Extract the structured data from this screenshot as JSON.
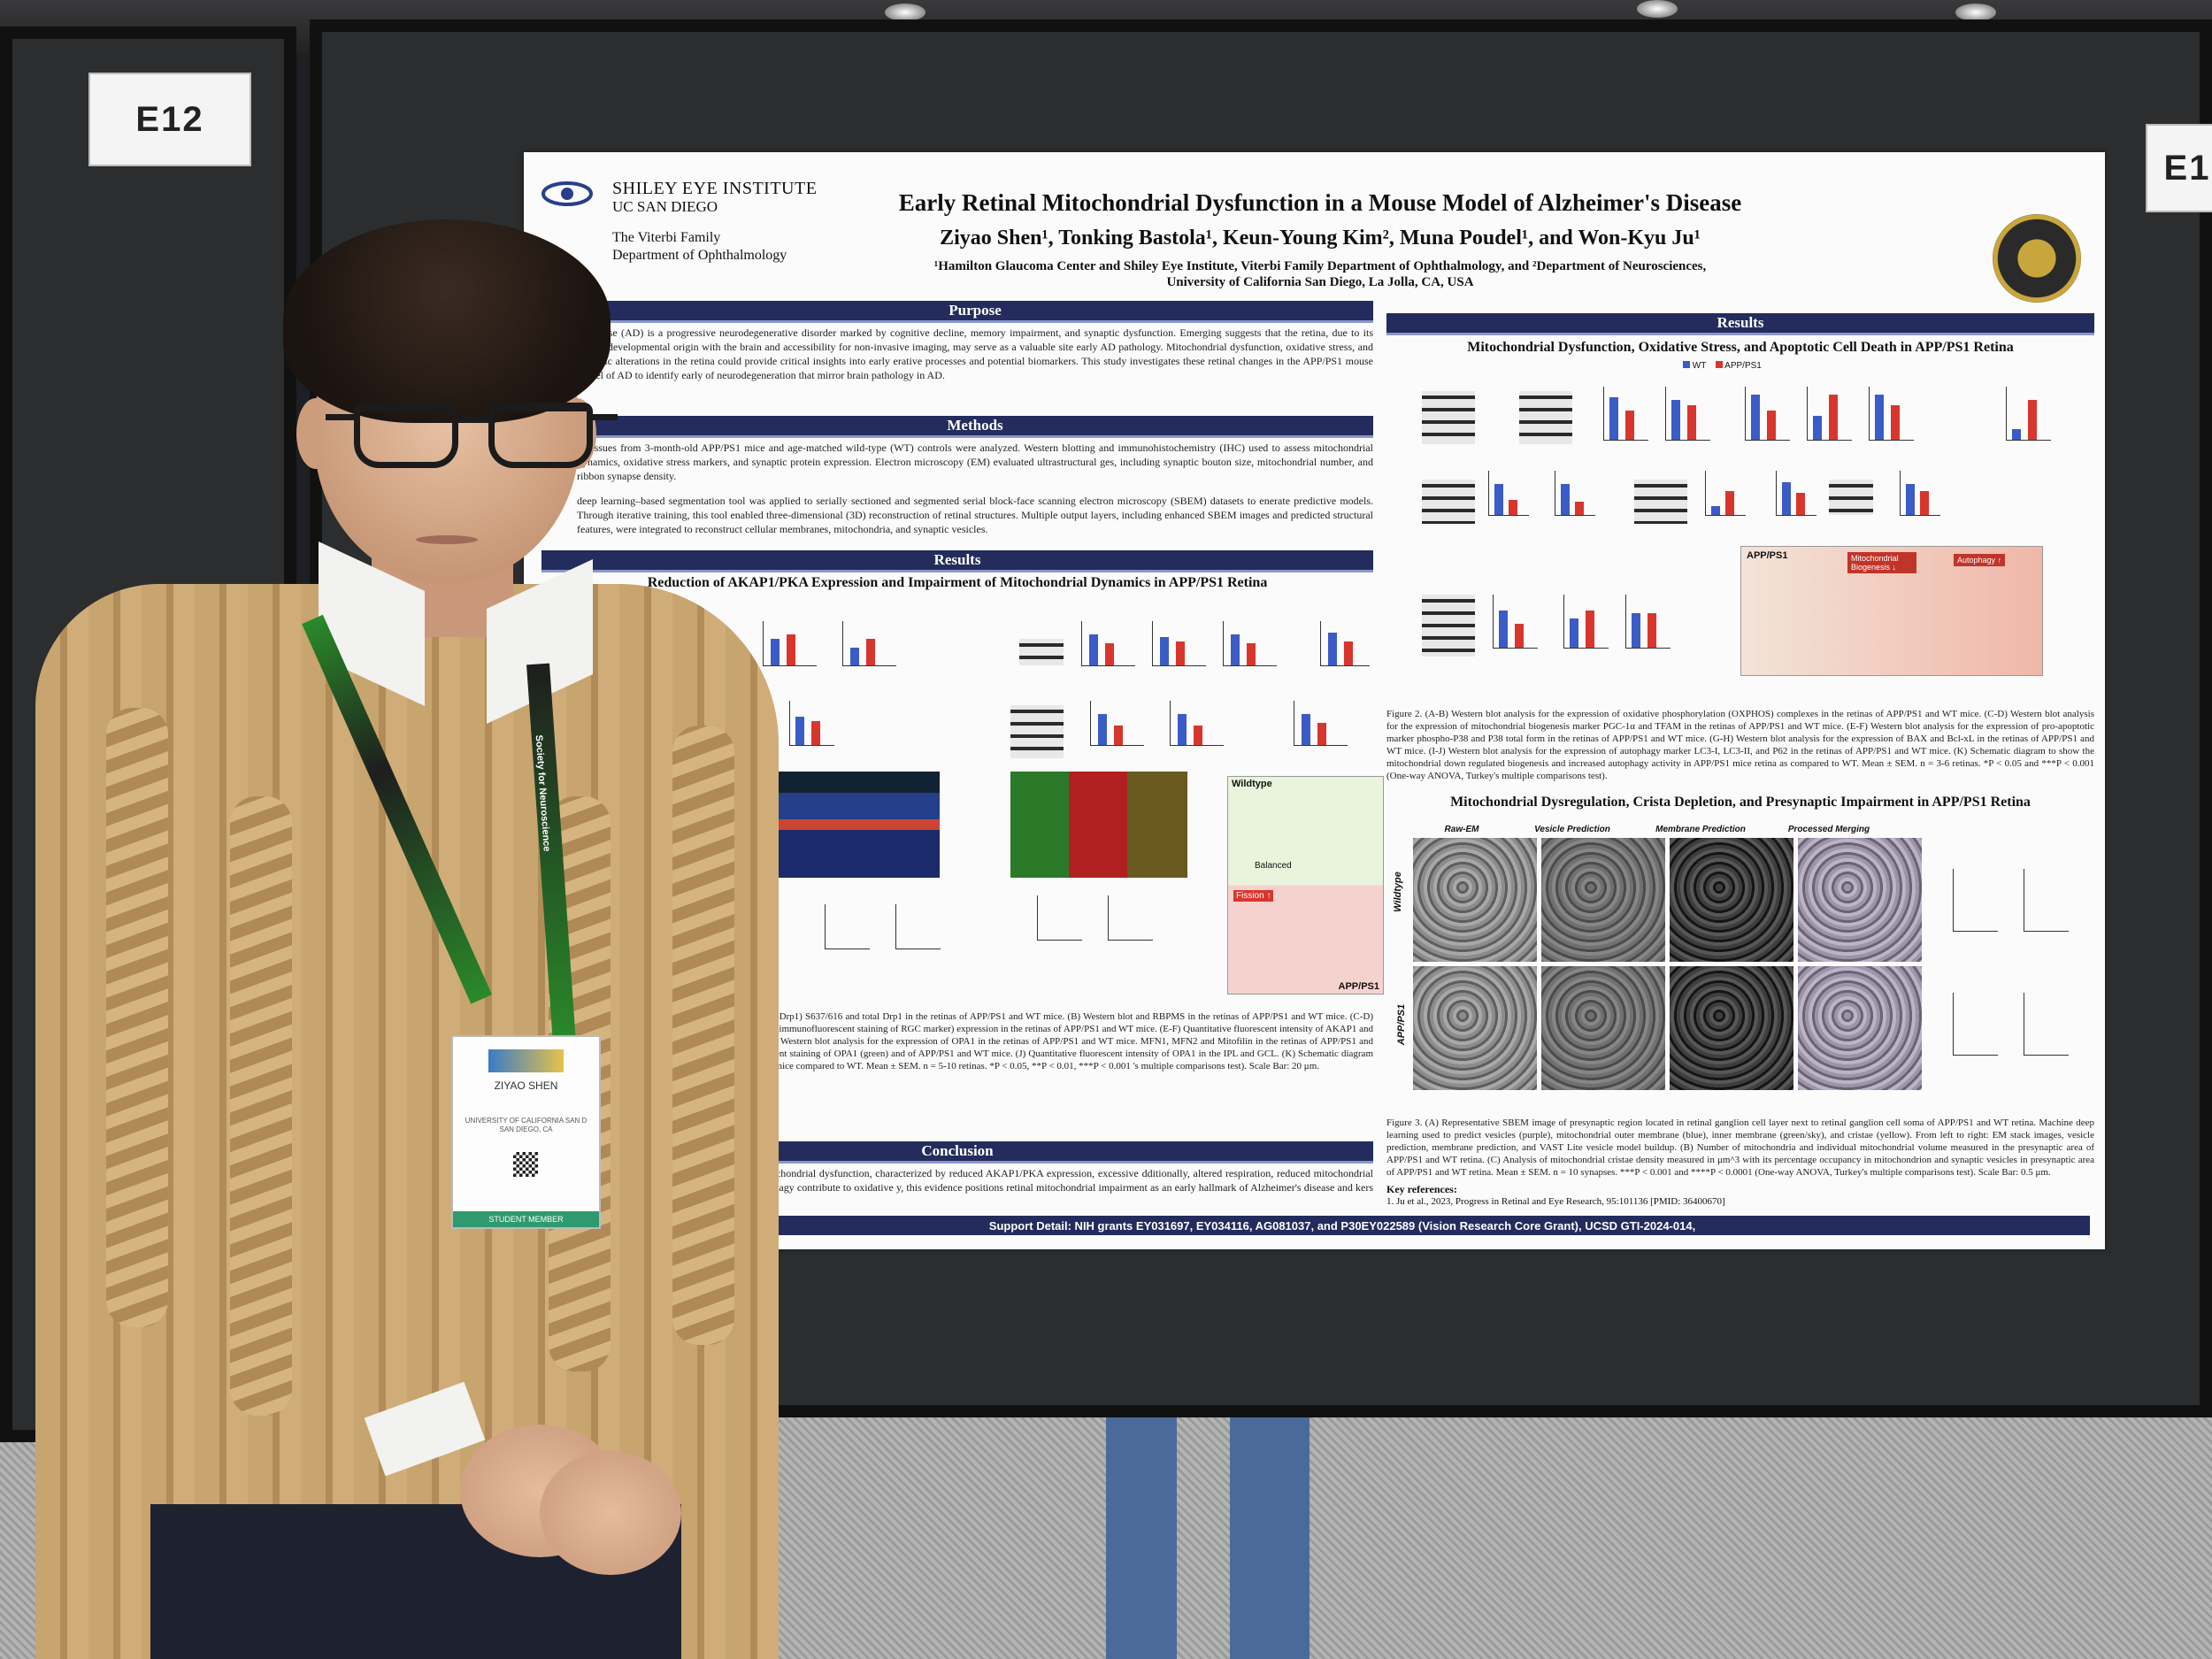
{
  "scene": {
    "board_labels": [
      "E12",
      "E1"
    ]
  },
  "poster": {
    "institute": "SHILEY EYE INSTITUTE",
    "institute_sub": "UC SAN DIEGO",
    "dept_line1": "The Viterbi Family",
    "dept_line2": "Department of Ophthalmology",
    "title": "Early Retinal Mitochondrial Dysfunction in a Mouse Model of Alzheimer's Disease",
    "authors": "Ziyao Shen¹, Tonking Bastola¹, Keun-Young Kim², Muna Poudel¹, and Won-Kyu Ju¹",
    "affiliation1": "¹Hamilton Glaucoma Center and Shiley Eye Institute, Viterbi Family Department of Ophthalmology, and ²Department of Neurosciences,",
    "affiliation2": "University of California San Diego, La Jolla, CA, USA",
    "sections": {
      "purpose": "Purpose",
      "methods": "Methods",
      "results_left": "Results",
      "results_right": "Results",
      "conclusion": "Conclusion"
    },
    "purpose_text": "'s disease (AD) is a progressive neurodegenerative disorder marked by cognitive decline, memory impairment, and synaptic dysfunction. Emerging suggests that the retina, due to its shared developmental origin with the brain and accessibility for non-invasive imaging, may serve as a valuable site early AD pathology. Mitochondrial dysfunction, oxidative stress, and synaptic alterations in the retina could provide critical insights into early erative processes and potential biomarkers. This study investigates these retinal changes in the APP/PS1 mouse model of AD to identify early of neurodegeneration that mirror brain pathology in AD.",
    "methods_text1": "al tissues from 3-month-old APP/PS1 mice and age-matched wild-type (WT) controls were analyzed. Western blotting and immunohistochemistry (IHC) used to assess mitochondrial dynamics, oxidative stress markers, and synaptic protein expression. Electron microscopy (EM) evaluated ultrastructural ges, including synaptic bouton size, mitochondrial number, and ribbon synapse density.",
    "methods_text2": "deep learning–based segmentation tool was applied to serially sectioned and segmented serial block-face scanning electron microscopy (SBEM) datasets to enerate predictive models. Through iterative training, this tool enabled three-dimensional (3D) reconstruction of retinal structures. Multiple output layers, including enhanced SBEM images and predicted structural features, were integrated to reconstruct cellular membranes, mitochondria, and synaptic vesicles.",
    "fig1_title": "Reduction of AKAP1/PKA Expression and Impairment of Mitochondrial Dynamics in APP/PS1 Retina",
    "fig1_caption": "expression of phospho-Drp1 (pDrp1) S637/616 and total Drp1 in the retinas of APP/PS1 and WT mice. (B) Western blot and RBPMS in the retinas of APP/PS1 and WT mice. (C-D) Representative images showed immunofluorescent staining of RGC marker) expression in the retinas of APP/PS1 and WT mice. (E-F) Quantitative fluorescent intensity of AKAP1 and ganglion cell layer (GCL). (G) Western blot analysis for the expression of OPA1 in the retinas of APP/PS1 and WT mice. MFN1, MFN2 and Mitofilin in the retinas of APP/PS1 and WT mice. (I) Immunofluorescent staining of OPA1 (green) and of APP/PS1 and WT mice. (J) Quantitative fluorescent intensity of OPA1 in the IPL and GCL. (K) Schematic diagram to fission activity in APP/PS1 mice compared to WT. Mean ± SEM. n = 5-10 retinas. *P < 0.05, **P < 0.01, ***P < 0.001 's multiple comparisons test). Scale Bar: 20 μm.",
    "fig2_title": "Mitochondrial Dysfunction, Oxidative Stress, and Apoptotic Cell Death in APP/PS1 Retina",
    "fig2_caption": "Figure 2. (A-B) Western blot analysis for the expression of oxidative phosphorylation (OXPHOS) complexes in the retinas of APP/PS1 and WT mice. (C-D) Western blot analysis for the expression of mitochondrial biogenesis marker PGC-1α and TFAM in the retinas of APP/PS1 and WT mice. (E-F) Western blot analysis for the expression of pro-apoptotic marker phospho-P38 and P38 total form in the retinas of APP/PS1 and WT mice. (G-H) Western blot analysis for the expression of BAX and Bcl-xL in the retinas of APP/PS1 and WT mice. (I-J) Western blot analysis for the expression of autophagy marker LC3-I, LC3-II, and P62 in the retinas of APP/PS1 and WT mice. (K) Schematic diagram to show the mitochondrial down regulated biogenesis and increased autophagy activity in APP/PS1 mice retina as compared to WT. Mean ± SEM. n = 3-6 retinas. *P < 0.05 and ***P < 0.001 (One-way ANOVA, Turkey's multiple comparisons test).",
    "fig3_title": "Mitochondrial Dysregulation, Crista Depletion, and Presynaptic Impairment in APP/PS1 Retina",
    "fig3_cols": [
      "Raw-EM",
      "Vesicle Prediction",
      "Membrane Prediction",
      "Processed Merging"
    ],
    "fig3_rows": [
      "Wildtype",
      "APP/PS1"
    ],
    "fig3_caption": "Figure 3. (A) Representative SBEM image of presynaptic region located in retinal ganglion cell layer next to retinal ganglion cell soma of APP/PS1 and WT retina. Machine deep learning used to predict vesicles (purple), mitochondrial outer membrane (blue), inner membrane (green/sky), and cristae (yellow). From left to right: EM stack images, vesicle prediction, membrane prediction, and VAST Lite vesicle model buildup. (B) Number of mitochondria and individual mitochondrial volume measured in the presynaptic area of APP/PS1 and WT retina. (C) Analysis of mitochondrial cristae density measured in μm^3 with its percentage occupancy in mitochondrion and synaptic vesicles in presynaptic area of APP/PS1 and WT retina. Mean ± SEM. n = 10 synapses. ***P < 0.001 and ****P < 0.0001 (One-way ANOVA, Turkey's multiple comparisons test). Scale Bar: 0.5 μm.",
    "conclusion_text": "isease retinas exhibit early mitochondrial dysfunction, characterized by reduced AKAP1/PKA expression, excessive dditionally, altered respiration, reduced mitochondrial biogenesis, and defective mitophagy contribute to oxidative y, this evidence positions retinal mitochondrial impairment as an early hallmark of Alzheimer's disease and kers for early detection.",
    "key_refs_title": "Key references:",
    "key_ref1": "1. Ju et al., 2023, Progress in Retinal and Eye Research, 95:101136 [PMID: 36400670]",
    "support": "Support Detail: NIH grants EY031697, EY034116, AG081037, and P30EY022589 (Vision Research Core Grant), UCSD GTI-2024-014,",
    "legend_wt": "WT",
    "legend_app": "APP/PS1",
    "schematic_labels": [
      "Wildtype",
      "Fission ↑",
      "APP/PS1",
      "Balanced",
      "Mitochondrial Biogenesis ↓",
      "Autophagy ↑"
    ],
    "colors": {
      "banner": "#232c5c",
      "wt": "#3b5bc7",
      "app": "#d8362d"
    }
  },
  "badge": {
    "name": "ZIYAO SHEN",
    "affiliation": "UNIVERSITY OF CALIFORNIA SAN D SAN DIEGO, CA",
    "footer": "STUDENT MEMBER",
    "lanyard_text": "Society for Neuroscience"
  }
}
